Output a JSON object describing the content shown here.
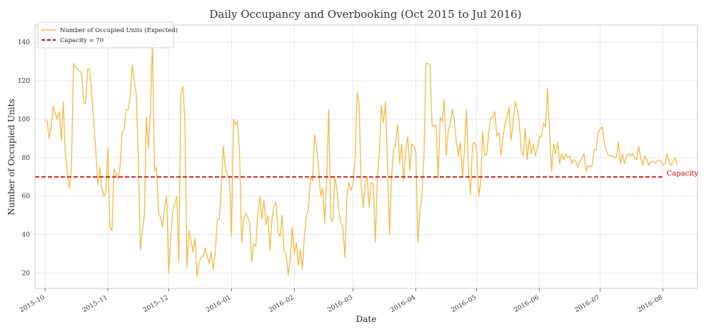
{
  "chart_data": {
    "type": "line",
    "title": "Daily Occupancy and Overbooking (Oct 2015 to Jul 2016)",
    "xlabel": "Date",
    "ylabel": "Number of Occupied Units",
    "ylim": [
      12,
      149
    ],
    "xlim": [
      "2015-09-26",
      "2016-08-18"
    ],
    "grid": true,
    "legend_position": "top-left",
    "x_ticks": [
      "2015-10-01",
      "2015-11-01",
      "2015-12-01",
      "2016-01-01",
      "2016-02-01",
      "2016-03-01",
      "2016-04-01",
      "2016-05-01",
      "2016-06-01",
      "2016-07-01",
      "2016-08-01"
    ],
    "x_tick_labels": [
      "2015–10",
      "2015–11",
      "2015–12",
      "2016–01",
      "2016–02",
      "2016–03",
      "2016–04",
      "2016–05",
      "2016–06",
      "2016–07",
      "2016–08"
    ],
    "y_ticks": [
      20,
      40,
      60,
      80,
      100,
      120,
      140
    ],
    "series": [
      {
        "name": "Number of Occupied Units (Expected)",
        "color": "#f5b942",
        "start_date": "2015-10-01",
        "values": [
          100,
          99,
          90,
          96,
          107,
          103,
          100,
          104,
          89,
          109,
          82,
          72,
          64,
          75,
          129,
          127,
          126,
          125,
          124,
          109,
          108,
          126,
          126,
          113,
          99,
          84,
          66,
          75,
          64,
          60,
          62,
          85,
          44,
          42,
          74,
          72,
          69,
          75,
          93,
          95,
          105,
          105,
          112,
          128,
          120,
          113,
          80,
          32,
          42,
          50,
          101,
          85,
          105,
          140,
          73,
          75,
          51,
          49,
          44,
          55,
          60,
          20,
          38,
          52,
          56,
          60,
          26,
          113,
          117,
          100,
          23,
          42,
          37,
          31,
          38,
          18,
          26,
          28,
          29,
          33,
          29,
          25,
          31,
          22,
          30,
          48,
          48,
          65,
          86,
          74,
          71,
          70,
          39,
          100,
          97,
          99,
          82,
          36,
          48,
          51,
          49,
          46,
          26,
          35,
          34,
          51,
          60,
          48,
          58,
          45,
          50,
          32,
          48,
          55,
          57,
          41,
          39,
          50,
          31,
          30,
          19,
          27,
          44,
          30,
          36,
          24,
          32,
          22,
          40,
          50,
          53,
          70,
          68,
          92,
          85,
          75,
          60,
          64,
          46,
          70,
          105,
          48,
          47,
          70,
          64,
          52,
          46,
          44,
          28,
          60,
          67,
          63,
          66,
          80,
          114,
          108,
          66,
          54,
          67,
          70,
          54,
          67,
          66,
          36,
          70,
          83,
          107,
          98,
          109,
          77,
          40,
          70,
          84,
          87,
          97,
          77,
          87,
          68,
          84,
          91,
          73,
          87,
          86,
          83,
          36,
          52,
          60,
          80,
          129,
          129,
          128,
          97,
          96,
          97,
          69,
          101,
          99,
          110,
          81,
          94,
          98,
          105,
          99,
          88,
          81,
          88,
          70,
          84,
          105,
          73,
          61,
          87,
          88,
          85,
          60,
          67,
          94,
          81,
          82,
          93,
          101,
          101,
          104,
          91,
          93,
          81,
          90,
          98,
          101,
          106,
          89,
          98,
          109,
          105,
          99,
          84,
          81,
          95,
          79,
          90,
          82,
          87,
          81,
          85,
          91,
          91,
          98,
          96,
          116,
          94,
          73,
          87,
          82,
          88,
          77,
          82,
          79,
          82,
          80,
          81,
          77,
          79,
          78,
          75,
          78,
          80,
          82,
          73,
          76,
          75,
          76,
          84,
          84,
          93,
          95,
          96,
          88,
          84,
          81,
          81,
          81,
          80,
          80,
          88,
          77,
          82,
          77,
          81,
          82,
          81,
          82,
          80,
          79,
          86,
          80,
          76,
          81,
          79,
          76,
          78,
          78,
          77,
          78,
          79,
          78,
          76,
          77,
          82,
          78,
          76,
          78,
          80,
          76
        ]
      },
      {
        "name": "Capacity = 70",
        "color": "#dd0000",
        "value": 70
      }
    ],
    "annotations": [
      {
        "text": "Capacity",
        "x": "2016-08-01",
        "y": 70,
        "color": "#dd0000"
      }
    ]
  }
}
